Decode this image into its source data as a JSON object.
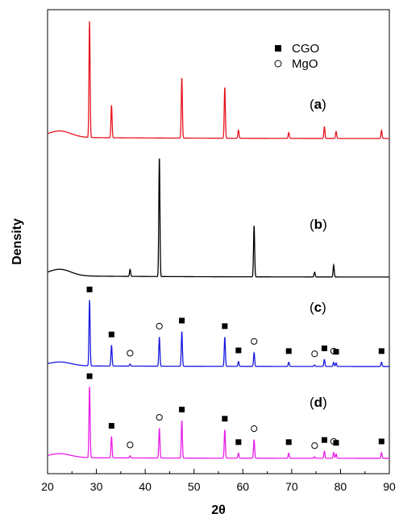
{
  "chart_data": {
    "type": "line",
    "xlabel": "2θ",
    "ylabel": "Density",
    "xlim": [
      20,
      90
    ],
    "xticks": [
      "20",
      "30",
      "40",
      "50",
      "60",
      "70",
      "80",
      "90"
    ],
    "legend": {
      "placement": "top-right",
      "entries": [
        {
          "label": "CGO",
          "marker": "filled-square"
        },
        {
          "label": "MgO",
          "marker": "open-circle"
        }
      ]
    },
    "series": [
      {
        "panel": "(a)",
        "panel_letter": "a",
        "color": "#e8141e",
        "peaks": [
          [
            28.6,
            1.0
          ],
          [
            33.1,
            0.28
          ],
          [
            47.5,
            0.52
          ],
          [
            56.3,
            0.44
          ],
          [
            59.1,
            0.07
          ],
          [
            69.4,
            0.05
          ],
          [
            76.7,
            0.1
          ],
          [
            79.1,
            0.06
          ],
          [
            88.4,
            0.07
          ]
        ],
        "markers": []
      },
      {
        "panel": "(b)",
        "panel_letter": "b",
        "color": "#000000",
        "peaks": [
          [
            36.9,
            0.06
          ],
          [
            42.9,
            1.0
          ],
          [
            62.3,
            0.43
          ],
          [
            74.7,
            0.04
          ],
          [
            78.6,
            0.1
          ]
        ],
        "markers": []
      },
      {
        "panel": "(c)",
        "panel_letter": "c",
        "color": "#1a1ae0",
        "peaks": [
          [
            28.6,
            0.95
          ],
          [
            33.1,
            0.3
          ],
          [
            36.9,
            0.03
          ],
          [
            42.9,
            0.42
          ],
          [
            47.5,
            0.5
          ],
          [
            56.3,
            0.42
          ],
          [
            59.1,
            0.07
          ],
          [
            62.3,
            0.2
          ],
          [
            69.4,
            0.06
          ],
          [
            74.7,
            0.02
          ],
          [
            76.7,
            0.1
          ],
          [
            78.6,
            0.06
          ],
          [
            79.1,
            0.05
          ],
          [
            88.4,
            0.06
          ]
        ],
        "markers": [
          {
            "x": 28.6,
            "type": "CGO"
          },
          {
            "x": 33.1,
            "type": "CGO"
          },
          {
            "x": 36.9,
            "type": "MgO"
          },
          {
            "x": 42.9,
            "type": "MgO"
          },
          {
            "x": 47.5,
            "type": "CGO"
          },
          {
            "x": 56.3,
            "type": "CGO"
          },
          {
            "x": 59.1,
            "type": "CGO"
          },
          {
            "x": 62.3,
            "type": "MgO"
          },
          {
            "x": 69.4,
            "type": "CGO"
          },
          {
            "x": 74.7,
            "type": "MgO"
          },
          {
            "x": 76.7,
            "type": "CGO"
          },
          {
            "x": 78.6,
            "type": "MgO"
          },
          {
            "x": 79.1,
            "type": "CGO"
          },
          {
            "x": 88.4,
            "type": "CGO"
          }
        ]
      },
      {
        "panel": "(d)",
        "panel_letter": "d",
        "color": "#e81ee8",
        "peaks": [
          [
            28.6,
            1.0
          ],
          [
            33.1,
            0.3
          ],
          [
            36.9,
            0.03
          ],
          [
            42.9,
            0.42
          ],
          [
            47.5,
            0.53
          ],
          [
            56.3,
            0.4
          ],
          [
            59.1,
            0.07
          ],
          [
            62.3,
            0.26
          ],
          [
            69.4,
            0.07
          ],
          [
            74.7,
            0.02
          ],
          [
            76.7,
            0.1
          ],
          [
            78.6,
            0.08
          ],
          [
            79.1,
            0.06
          ],
          [
            88.4,
            0.08
          ]
        ],
        "markers": [
          {
            "x": 28.6,
            "type": "CGO"
          },
          {
            "x": 33.1,
            "type": "CGO"
          },
          {
            "x": 36.9,
            "type": "MgO"
          },
          {
            "x": 42.9,
            "type": "MgO"
          },
          {
            "x": 47.5,
            "type": "CGO"
          },
          {
            "x": 56.3,
            "type": "CGO"
          },
          {
            "x": 59.1,
            "type": "CGO"
          },
          {
            "x": 62.3,
            "type": "MgO"
          },
          {
            "x": 69.4,
            "type": "CGO"
          },
          {
            "x": 74.7,
            "type": "MgO"
          },
          {
            "x": 76.7,
            "type": "CGO"
          },
          {
            "x": 78.6,
            "type": "MgO"
          },
          {
            "x": 79.1,
            "type": "CGO"
          },
          {
            "x": 88.4,
            "type": "CGO"
          }
        ]
      }
    ]
  }
}
